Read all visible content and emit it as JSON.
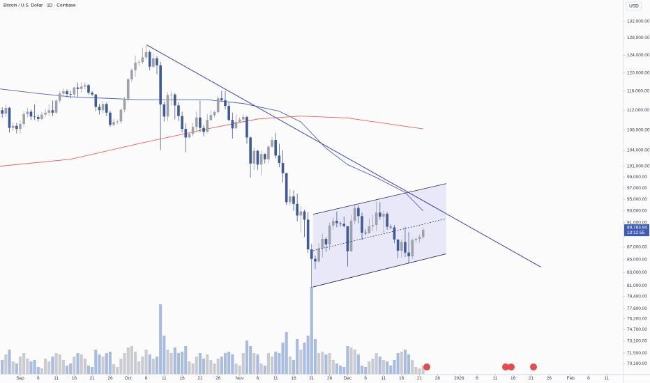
{
  "chart_data": {
    "type": "candlestick",
    "title": "Bitcoin / U.S. Dollar · 1D · Coinbase",
    "currency": "USD",
    "log_scale": true,
    "grid": false,
    "up_color": "#9ea1a8",
    "down_color": "#3f5a98",
    "up_volume_color": "#c9cbd1",
    "down_volume_color": "#a8bcdf",
    "xlim": [
      -5.62,
      167.5
    ],
    "xticks": [
      {
        "value": 0,
        "label": "Sep"
      },
      {
        "value": 5,
        "label": "6"
      },
      {
        "value": 10,
        "label": "11"
      },
      {
        "value": 15,
        "label": "16"
      },
      {
        "value": 20,
        "label": "21"
      },
      {
        "value": 25,
        "label": "26"
      },
      {
        "value": 30,
        "label": "Oct"
      },
      {
        "value": 35,
        "label": "6"
      },
      {
        "value": 40,
        "label": "11"
      },
      {
        "value": 45,
        "label": "16"
      },
      {
        "value": 50,
        "label": "21"
      },
      {
        "value": 55,
        "label": "26"
      },
      {
        "value": 61,
        "label": "Nov"
      },
      {
        "value": 66,
        "label": "6"
      },
      {
        "value": 71,
        "label": "11"
      },
      {
        "value": 76,
        "label": "16"
      },
      {
        "value": 81,
        "label": "21"
      },
      {
        "value": 86,
        "label": "26"
      },
      {
        "value": 91,
        "label": "Dec"
      },
      {
        "value": 96,
        "label": "6"
      },
      {
        "value": 101,
        "label": "11"
      },
      {
        "value": 106,
        "label": "16"
      },
      {
        "value": 111,
        "label": "21"
      },
      {
        "value": 116,
        "label": "26"
      },
      {
        "value": 122,
        "label": "2026"
      },
      {
        "value": 127,
        "label": "6"
      },
      {
        "value": 132,
        "label": "11"
      },
      {
        "value": 137,
        "label": "16"
      },
      {
        "value": 142,
        "label": "21"
      },
      {
        "value": 147,
        "label": "26"
      },
      {
        "value": 153,
        "label": "Feb"
      },
      {
        "value": 158,
        "label": "6"
      },
      {
        "value": 163,
        "label": "11"
      }
    ],
    "ylim": [
      68800,
      137300
    ],
    "yticks": [
      {
        "value": 132000,
        "label": "132,000.00"
      },
      {
        "value": 128000,
        "label": "128,000.00"
      },
      {
        "value": 124000,
        "label": "124,000.00"
      },
      {
        "value": 120000,
        "label": "120,000.00"
      },
      {
        "value": 116000,
        "label": "116,000.00"
      },
      {
        "value": 112000,
        "label": "112,000.00"
      },
      {
        "value": 108000,
        "label": "108,000.00"
      },
      {
        "value": 104000,
        "label": "104,000.00"
      },
      {
        "value": 101000,
        "label": "101,000.00"
      },
      {
        "value": 99000,
        "label": "99,000.00"
      },
      {
        "value": 97000,
        "label": "97,000.00"
      },
      {
        "value": 95000,
        "label": "95,000.00"
      },
      {
        "value": 93000,
        "label": "93,000.00"
      },
      {
        "value": 91000,
        "label": "91,000.00"
      },
      {
        "value": 87000,
        "label": "87,000.00"
      },
      {
        "value": 85000,
        "label": "85,000.00"
      },
      {
        "value": 83000,
        "label": "83,000.00"
      },
      {
        "value": 81000,
        "label": "81,000.00"
      },
      {
        "value": 79400,
        "label": "79,400.00"
      },
      {
        "value": 77600,
        "label": "77,600.00"
      },
      {
        "value": 76200,
        "label": "76,200.00"
      },
      {
        "value": 74700,
        "label": "74,700.00"
      },
      {
        "value": 73100,
        "label": "73,100.00"
      },
      {
        "value": 71500,
        "label": "71,500.00"
      },
      {
        "value": 70100,
        "label": "70,100.00"
      }
    ],
    "x": [
      -5,
      -4,
      -3,
      -2,
      -1,
      0,
      1,
      2,
      3,
      4,
      5,
      6,
      7,
      8,
      9,
      10,
      11,
      12,
      13,
      14,
      15,
      16,
      17,
      18,
      19,
      20,
      21,
      22,
      23,
      24,
      25,
      26,
      27,
      28,
      29,
      30,
      31,
      32,
      33,
      34,
      35,
      36,
      37,
      38,
      39,
      40,
      41,
      42,
      43,
      44,
      45,
      46,
      47,
      48,
      49,
      50,
      51,
      52,
      53,
      54,
      55,
      56,
      57,
      58,
      59,
      60,
      61,
      62,
      63,
      64,
      65,
      66,
      67,
      68,
      69,
      70,
      71,
      72,
      73,
      74,
      75,
      76,
      77,
      78,
      79,
      80,
      81,
      82,
      83,
      84,
      85,
      86,
      87,
      88,
      89,
      90,
      91,
      92,
      93,
      94,
      95,
      96,
      97,
      98,
      99,
      100,
      101,
      102,
      103,
      104,
      105,
      106,
      107,
      108,
      109,
      110,
      111,
      112
    ],
    "open": [
      112000,
      111300,
      112500,
      108400,
      108800,
      108200,
      109200,
      111200,
      111700,
      110700,
      110600,
      110200,
      111100,
      111500,
      112000,
      111500,
      114000,
      115500,
      116000,
      115400,
      115300,
      116800,
      116500,
      117000,
      117300,
      115700,
      115300,
      112700,
      112000,
      113300,
      111500,
      109000,
      109600,
      109700,
      112100,
      114400,
      118600,
      120600,
      122300,
      122400,
      123500,
      124700,
      121400,
      123300,
      121700,
      113200,
      110700,
      115200,
      115300,
      113000,
      110800,
      108200,
      106500,
      107200,
      108600,
      110500,
      108400,
      107600,
      110000,
      111000,
      111600,
      114500,
      114100,
      112900,
      110000,
      108300,
      109600,
      110100,
      110600,
      106500,
      101500,
      103900,
      101300,
      103300,
      102300,
      104700,
      106000,
      103000,
      101600,
      99700,
      94500,
      95500,
      94200,
      92200,
      92900,
      91500,
      86600,
      85100,
      84700,
      86800,
      88300,
      87400,
      90500,
      91300,
      90900,
      90800,
      90400,
      86300,
      91300,
      93500,
      92100,
      89300,
      89200,
      90400,
      90600,
      92700,
      92000,
      92500,
      90300,
      90200,
      88200,
      86400,
      87800,
      86100,
      85500,
      88100,
      88300,
      88600
    ],
    "high": [
      112600,
      113200,
      112700,
      109500,
      109400,
      109900,
      111800,
      112500,
      112200,
      113200,
      111100,
      111600,
      112200,
      113200,
      114000,
      114300,
      116000,
      116600,
      116400,
      116100,
      117000,
      117800,
      117900,
      117900,
      117500,
      116000,
      115400,
      113300,
      113900,
      113600,
      111900,
      110300,
      110000,
      112400,
      114800,
      118800,
      121000,
      123900,
      122900,
      125700,
      126200,
      125100,
      124200,
      123800,
      122500,
      113800,
      115800,
      116000,
      115600,
      113600,
      111700,
      109300,
      107500,
      109400,
      111700,
      114000,
      109000,
      111200,
      111900,
      111900,
      115000,
      116100,
      116000,
      113600,
      111500,
      111200,
      110500,
      111200,
      110900,
      106700,
      104500,
      104100,
      104000,
      103400,
      105000,
      106600,
      107400,
      105300,
      104000,
      99800,
      96800,
      96600,
      96000,
      93800,
      93200,
      92800,
      87500,
      85600,
      87600,
      89200,
      88600,
      91000,
      91900,
      92900,
      91200,
      92000,
      90400,
      92300,
      94100,
      94000,
      92700,
      89900,
      91700,
      92300,
      94600,
      94500,
      93000,
      92800,
      90700,
      90600,
      88200,
      88200,
      90300,
      89400,
      88400,
      88600,
      89000,
      90200
    ],
    "low": [
      110500,
      110600,
      107500,
      107800,
      107300,
      107300,
      108600,
      110500,
      110000,
      110000,
      109700,
      110000,
      110600,
      110800,
      110800,
      111200,
      113500,
      114800,
      114700,
      114500,
      114800,
      114700,
      115700,
      116400,
      115300,
      115000,
      111800,
      111100,
      111300,
      110800,
      108600,
      108700,
      109100,
      109200,
      111600,
      113800,
      118000,
      119200,
      121600,
      122000,
      123000,
      120600,
      121000,
      119700,
      104000,
      109700,
      109800,
      113000,
      110100,
      109800,
      107500,
      103600,
      106400,
      106700,
      107500,
      107500,
      106700,
      107500,
      109800,
      110500,
      111300,
      113900,
      112200,
      109800,
      106300,
      108300,
      109400,
      109700,
      105300,
      98900,
      100300,
      100300,
      99300,
      101500,
      101500,
      104500,
      102500,
      100800,
      98000,
      94000,
      94000,
      93000,
      91200,
      89300,
      88600,
      86000,
      80600,
      83500,
      84500,
      85300,
      86200,
      86500,
      89800,
      90200,
      90300,
      90200,
      83900,
      86200,
      90800,
      90900,
      88100,
      88900,
      89300,
      89600,
      89600,
      91500,
      89300,
      89800,
      89900,
      87600,
      85200,
      85300,
      85400,
      84400,
      85100,
      87600,
      87700,
      88300
    ],
    "close": [
      111300,
      112500,
      108400,
      108800,
      108200,
      109200,
      111200,
      111700,
      110700,
      110600,
      110200,
      111100,
      111500,
      112000,
      111500,
      114000,
      115500,
      116000,
      115400,
      115300,
      116800,
      116500,
      117000,
      117300,
      115700,
      115300,
      112700,
      112000,
      113300,
      111500,
      109000,
      109600,
      109700,
      112100,
      114400,
      118600,
      120600,
      122300,
      122400,
      123500,
      124700,
      121400,
      123300,
      121700,
      113200,
      110700,
      115200,
      115300,
      113000,
      110800,
      108200,
      106500,
      107200,
      108600,
      110500,
      108400,
      107600,
      110000,
      111000,
      111600,
      114500,
      114100,
      112900,
      110000,
      108300,
      109600,
      110100,
      110600,
      106500,
      101500,
      103900,
      101300,
      103300,
      102300,
      104700,
      106000,
      103000,
      101600,
      99700,
      94500,
      95500,
      94200,
      92200,
      92900,
      91500,
      86600,
      85100,
      84700,
      86800,
      88300,
      87400,
      90500,
      91300,
      90900,
      90800,
      90400,
      86300,
      91300,
      93500,
      92100,
      89300,
      89200,
      90400,
      90600,
      92700,
      92000,
      92500,
      90300,
      90200,
      88200,
      86400,
      87800,
      86100,
      85500,
      88100,
      88300,
      88600,
      89800
    ],
    "volume": [
      20,
      28,
      35,
      18,
      15,
      25,
      30,
      22,
      18,
      20,
      10,
      8,
      22,
      18,
      25,
      30,
      28,
      20,
      12,
      15,
      25,
      30,
      28,
      22,
      12,
      10,
      35,
      28,
      25,
      30,
      32,
      14,
      10,
      22,
      30,
      38,
      40,
      32,
      18,
      25,
      35,
      28,
      22,
      25,
      100,
      55,
      35,
      30,
      38,
      30,
      32,
      40,
      18,
      15,
      25,
      30,
      22,
      28,
      20,
      15,
      22,
      25,
      30,
      32,
      28,
      15,
      12,
      30,
      48,
      40,
      30,
      28,
      15,
      12,
      30,
      25,
      32,
      30,
      45,
      60,
      25,
      20,
      50,
      35,
      45,
      55,
      125,
      50,
      30,
      32,
      28,
      30,
      20,
      15,
      12,
      10,
      40,
      38,
      35,
      28,
      12,
      10,
      18,
      22,
      30,
      25,
      20,
      18,
      12,
      20,
      30,
      32,
      35,
      28,
      20,
      10,
      8,
      12
    ],
    "moving_averages": [
      {
        "color": "#4a62c4",
        "x": [
          -5.6,
          4,
          14,
          24,
          33,
          43,
          52,
          62,
          72,
          78,
          85,
          91,
          99,
          107,
          112
        ],
        "values": [
          116500,
          115600,
          114800,
          114500,
          114200,
          114200,
          114200,
          113400,
          111800,
          109600,
          104400,
          101300,
          98900,
          96200,
          93000
        ]
      },
      {
        "color": "#f0634a",
        "x": [
          -5.6,
          14,
          33,
          52,
          66,
          78,
          91,
          112
        ],
        "values": [
          101000,
          102300,
          105300,
          108200,
          110200,
          110800,
          110400,
          108200
        ]
      }
    ],
    "trendline": {
      "color": "#3b3fb5",
      "x": [
        35.1,
        144.8
      ],
      "values": [
        126400,
        83800
      ]
    },
    "channel": {
      "color": "#1e1e3c",
      "fill": "#dcdcf5",
      "x": [
        81.4,
        118.4
      ],
      "upper": [
        92400,
        97800
      ],
      "lower": [
        80800,
        85900
      ]
    },
    "last_price": {
      "value": 89783.94,
      "label": "89,783.94"
    },
    "countdown": "13:12:55",
    "tag_color": "#3d5ab6"
  }
}
